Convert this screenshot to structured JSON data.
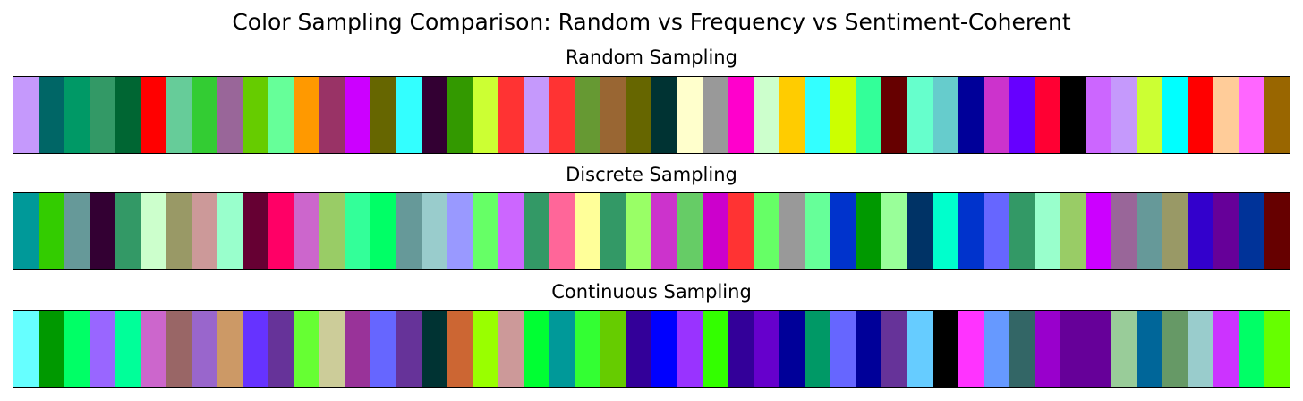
{
  "chart_data": {
    "type": "heatmap",
    "title": "Color Sampling Comparison: Random vs Frequency vs Sentiment-Coherent",
    "panels": [
      {
        "title": "Random Sampling",
        "colors": [
          "#c599fc",
          "#006666",
          "#009966",
          "#339966",
          "#006633",
          "#ff0000",
          "#66cc99",
          "#33cc33",
          "#996699",
          "#66cc00",
          "#66ff99",
          "#ff9900",
          "#993366",
          "#cc00ff",
          "#666600",
          "#33ffff",
          "#330033",
          "#339900",
          "#ccff33",
          "#ff3333",
          "#c599fc",
          "#ff3333",
          "#669933",
          "#996633",
          "#666600",
          "#003333",
          "#ffffcc",
          "#999999",
          "#ff00cc",
          "#ccffcc",
          "#ffcc00",
          "#33ffff",
          "#ccff00",
          "#33ff99",
          "#660000",
          "#66ffcc",
          "#66cccc",
          "#000099",
          "#cc33cc",
          "#6600ff",
          "#ff0033",
          "#000000",
          "#cc66ff",
          "#c599fc",
          "#ccff33",
          "#00ffff",
          "#ff0000",
          "#ffcc99",
          "#ff66ff",
          "#996600"
        ]
      },
      {
        "title": "Discrete Sampling",
        "colors": [
          "#009999",
          "#33cc00",
          "#669999",
          "#330033",
          "#339966",
          "#ccffcc",
          "#999966",
          "#cc9999",
          "#99ffcc",
          "#660033",
          "#ff0066",
          "#cc66cc",
          "#99cc66",
          "#33ff99",
          "#00ff66",
          "#669999",
          "#99cccc",
          "#9999ff",
          "#66ff66",
          "#cc66ff",
          "#339966",
          "#ff6699",
          "#ffff99",
          "#339966",
          "#99ff66",
          "#cc33cc",
          "#66cc66",
          "#cc00cc",
          "#ff3333",
          "#66ff66",
          "#999999",
          "#66ff99",
          "#0033cc",
          "#009900",
          "#99ff99",
          "#003366",
          "#00ffcc",
          "#0033cc",
          "#6666ff",
          "#339966",
          "#99ffcc",
          "#99cc66",
          "#cc00ff",
          "#996699",
          "#669999",
          "#999966",
          "#3300cc",
          "#660099",
          "#003399",
          "#660000"
        ]
      },
      {
        "title": "Continuous Sampling",
        "colors": [
          "#66ffff",
          "#009900",
          "#00ff66",
          "#9966ff",
          "#00ff99",
          "#cc66cc",
          "#996666",
          "#9966cc",
          "#cc9966",
          "#6633ff",
          "#663399",
          "#66ff33",
          "#cccc99",
          "#993399",
          "#6666ff",
          "#663399",
          "#003333",
          "#cc6633",
          "#99ff00",
          "#cc9999",
          "#00ff33",
          "#009999",
          "#33ff33",
          "#66cc00",
          "#330099",
          "#0000ff",
          "#9933ff",
          "#33ff00",
          "#330099",
          "#6600cc",
          "#000099",
          "#009966",
          "#6666ff",
          "#000099",
          "#663399",
          "#66ccff",
          "#000000",
          "#ff33ff",
          "#6699ff",
          "#336666",
          "#9900cc",
          "#660099",
          "#660099",
          "#99cc99",
          "#006699",
          "#669966",
          "#99cccc",
          "#cc33ff",
          "#00ff66",
          "#66ff00"
        ]
      }
    ]
  }
}
